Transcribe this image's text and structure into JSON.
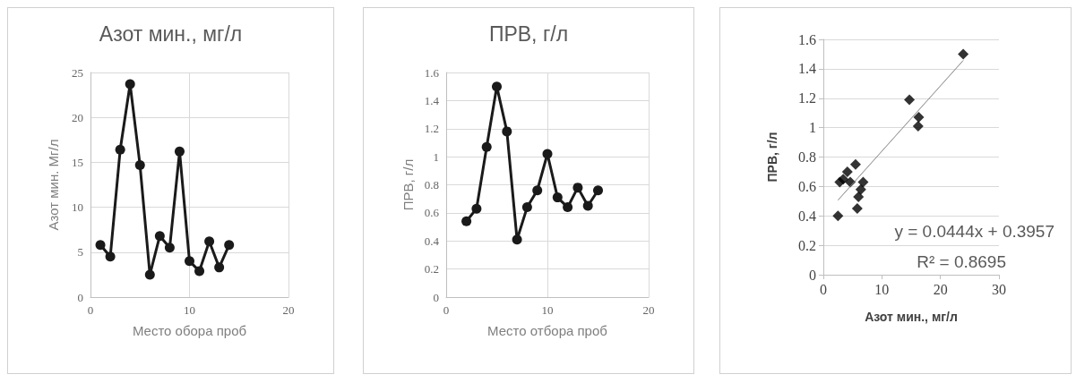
{
  "chart_data": [
    {
      "type": "line",
      "title": "Азот мин., мг/л",
      "xlabel": "Место обора проб",
      "ylabel": "Азот мин. Мг/л",
      "x": [
        1,
        2,
        3,
        4,
        5,
        6,
        7,
        8,
        9,
        10,
        11,
        12,
        13,
        14
      ],
      "series": [
        {
          "color": "#1a1a1a",
          "values": [
            5.8,
            4.5,
            16.4,
            23.7,
            14.7,
            2.5,
            6.8,
            5.5,
            16.2,
            4.0,
            2.9,
            6.2,
            3.3,
            5.8
          ]
        }
      ],
      "xlim": [
        0,
        20
      ],
      "xticks": [
        0,
        10,
        20
      ],
      "ylim": [
        0,
        25
      ],
      "yticks": [
        0,
        5,
        10,
        15,
        20,
        25
      ],
      "grid": true,
      "marker": "circle"
    },
    {
      "type": "line",
      "title": "ПРВ, г/л",
      "xlabel": "Место отбора проб",
      "ylabel": "ПРВ, г/л",
      "x": [
        2,
        3,
        4,
        5,
        6,
        7,
        8,
        9,
        10,
        11,
        12,
        13,
        14,
        15
      ],
      "series": [
        {
          "color": "#1a1a1a",
          "values": [
            0.54,
            0.63,
            1.07,
            1.5,
            1.18,
            0.41,
            0.64,
            0.76,
            1.02,
            0.71,
            0.64,
            0.78,
            0.65,
            0.76
          ]
        }
      ],
      "xlim": [
        0,
        20
      ],
      "xticks": [
        0,
        10,
        20
      ],
      "ylim": [
        0,
        1.6
      ],
      "yticks": [
        0,
        0.2,
        0.4,
        0.6,
        0.8,
        1,
        1.2,
        1.4,
        1.6
      ],
      "grid": true,
      "marker": "circle"
    },
    {
      "type": "scatter",
      "xlabel": "Азот мин., мг/л",
      "ylabel": "ПРВ, г/л",
      "series": [
        {
          "color": "#000000",
          "x": [
            2.5,
            2.8,
            3.4,
            4.1,
            4.6,
            5.5,
            5.8,
            6.0,
            6.4,
            6.8,
            14.7,
            16.3,
            16.2,
            23.9
          ],
          "values": [
            0.4,
            0.63,
            0.65,
            0.7,
            0.63,
            0.75,
            0.45,
            0.53,
            0.58,
            0.63,
            1.19,
            1.07,
            1.01,
            1.5
          ]
        },
        {
          "type": "line",
          "color": "#808080",
          "marker": "none",
          "x": [
            2.5,
            23.9
          ],
          "values": [
            0.507,
            1.457
          ]
        }
      ],
      "xlim": [
        0,
        30
      ],
      "xticks": [
        0,
        10,
        20,
        30
      ],
      "ylim": [
        0,
        1.6
      ],
      "yticks": [
        0,
        0.2,
        0.4,
        0.6,
        0.8,
        1,
        1.2,
        1.4,
        1.6
      ],
      "grid": "y",
      "marker": "diamond",
      "annotations": [
        "y = 0.0444x + 0.3957",
        "R² = 0.8695"
      ]
    }
  ]
}
